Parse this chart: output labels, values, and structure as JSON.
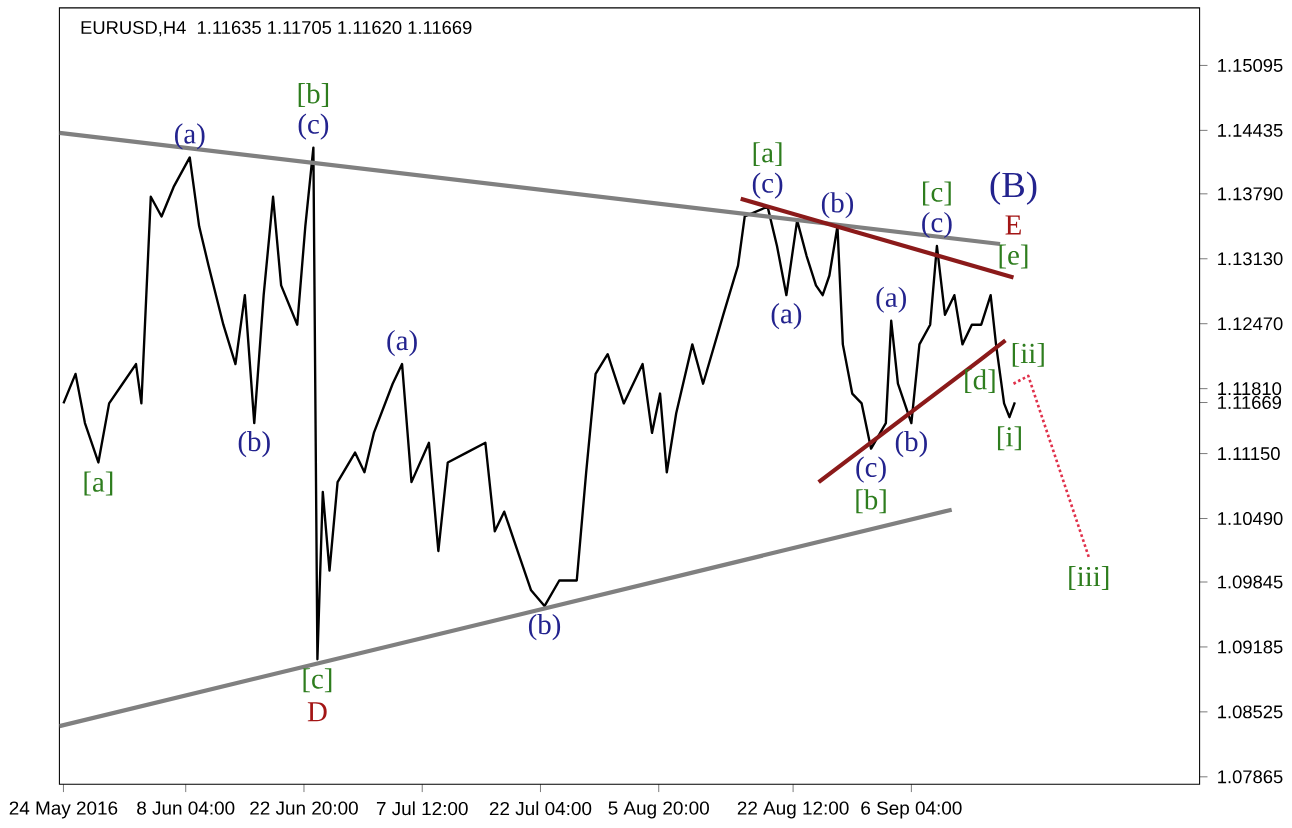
{
  "chart_data": {
    "type": "line",
    "title": "EURUSD,H4",
    "subtitle": "1.11635 1.11705 1.11620 1.11669",
    "xlim": [
      "2016-05-23T12:00",
      "2016-10-11T22:00"
    ],
    "ylim": [
      1.0779,
      1.1568
    ],
    "xticks": [
      {
        "value": "2016-05-24T00:00",
        "label": "24 May 2016"
      },
      {
        "value": "2016-06-08T04:00",
        "label": "8 Jun 04:00"
      },
      {
        "value": "2016-06-22T20:00",
        "label": "22 Jun 20:00"
      },
      {
        "value": "2016-07-07T12:00",
        "label": "7 Jul 12:00"
      },
      {
        "value": "2016-07-22T04:00",
        "label": "22 Jul 04:00"
      },
      {
        "value": "2016-08-05T20:00",
        "label": "5 Aug 20:00"
      },
      {
        "value": "2016-08-22T12:00",
        "label": "22 Aug 12:00"
      },
      {
        "value": "2016-09-06T04:00",
        "label": "6 Sep 04:00"
      }
    ],
    "yticks": [
      1.15095,
      1.14435,
      {
        "value": 1.1379,
        "label": "1.13790"
      },
      {
        "value": 1.1313,
        "label": "1.13130"
      },
      {
        "value": 1.1247,
        "label": "1.12470"
      },
      {
        "value": 1.1181,
        "label": "1.11810"
      },
      1.11669,
      {
        "value": 1.1115,
        "label": "1.11150"
      },
      {
        "value": 1.1049,
        "label": "1.10490"
      },
      1.09845,
      1.09185,
      1.08525,
      1.07865
    ],
    "marker": "none",
    "grid": false,
    "series": [
      {
        "color": "#000000",
        "x": [
          "2016-05-24T00:00",
          "2016-05-25T12:00",
          "2016-05-26T16:00",
          "2016-05-28T08:00",
          "2016-05-29T16:00",
          "2016-05-31T08:00",
          "2016-06-02T00:00",
          "2016-06-02T16:00",
          "2016-06-03T20:00",
          "2016-06-05T04:00",
          "2016-06-06T16:00",
          "2016-06-08T16:00",
          "2016-06-09T20:00",
          "2016-06-11T00:00",
          "2016-06-12T20:00",
          "2016-06-14T08:00",
          "2016-06-15T12:00",
          "2016-06-16T16:00",
          "2016-06-17T20:00",
          "2016-06-19T00:00",
          "2016-06-20T00:00",
          "2016-06-22T00:00",
          "2016-06-23T00:00",
          "2016-06-24T00:00",
          "2016-06-24T12:00",
          "2016-06-25T04:00",
          "2016-06-26T00:00",
          "2016-06-27T00:00",
          "2016-06-29T04:00",
          "2016-06-30T08:00",
          "2016-07-01T12:00",
          "2016-07-03T20:00",
          "2016-07-05T00:00",
          "2016-07-06T04:00",
          "2016-07-08T08:00",
          "2016-07-09T12:00",
          "2016-07-10T16:00",
          "2016-07-13T00:00",
          "2016-07-15T08:00",
          "2016-07-16T12:00",
          "2016-07-17T16:00",
          "2016-07-19T08:00",
          "2016-07-21T00:00",
          "2016-07-22T16:00",
          "2016-07-24T12:00",
          "2016-07-26T16:00",
          "2016-07-27T20:00",
          "2016-07-29T00:00",
          "2016-07-30T12:00",
          "2016-08-01T12:00",
          "2016-08-03T20:00",
          "2016-08-05T00:00",
          "2016-08-06T00:00",
          "2016-08-06T20:00",
          "2016-08-08T00:00",
          "2016-08-10T00:00",
          "2016-08-11T08:00",
          "2016-08-13T20:00",
          "2016-08-15T16:00",
          "2016-08-16T12:00",
          "2016-08-19T08:00",
          "2016-08-20T12:00",
          "2016-08-21T16:00",
          "2016-08-23T00:00",
          "2016-08-24T04:00",
          "2016-08-25T08:00",
          "2016-08-26T04:00",
          "2016-08-27T00:00",
          "2016-08-28T00:00",
          "2016-08-28T16:00",
          "2016-08-29T20:00",
          "2016-08-31T00:00",
          "2016-09-01T04:00",
          "2016-09-03T00:00",
          "2016-09-03T16:00",
          "2016-09-04T12:00",
          "2016-09-06T04:00",
          "2016-09-07T04:00",
          "2016-09-08T12:00",
          "2016-09-09T08:00",
          "2016-09-10T08:00",
          "2016-09-11T12:00",
          "2016-09-12T12:00",
          "2016-09-13T16:00",
          "2016-09-14T20:00",
          "2016-09-16T00:00",
          "2016-09-16T16:00",
          "2016-09-17T16:00",
          "2016-09-18T08:00",
          "2016-09-19T00:00"
        ],
        "values": [
          1.1166,
          1.1196,
          1.1146,
          1.1106,
          1.1166,
          1.1186,
          1.1206,
          1.1166,
          1.1376,
          1.1356,
          1.1386,
          1.1416,
          1.1346,
          1.1306,
          1.1246,
          1.1206,
          1.1276,
          1.1146,
          1.1276,
          1.1376,
          1.1286,
          1.1246,
          1.1346,
          1.1426,
          1.0906,
          1.1076,
          1.0996,
          1.1086,
          1.1116,
          1.1096,
          1.1136,
          1.1186,
          1.1206,
          1.1086,
          1.1126,
          1.1016,
          1.1106,
          1.1116,
          1.1126,
          1.1036,
          1.1056,
          1.1016,
          1.0976,
          1.096,
          1.0986,
          1.0986,
          1.1096,
          1.1196,
          1.1216,
          1.1166,
          1.1206,
          1.1136,
          1.1176,
          1.1096,
          1.1156,
          1.1226,
          1.1186,
          1.1256,
          1.1306,
          1.1356,
          1.1366,
          1.1326,
          1.1276,
          1.1352,
          1.1316,
          1.1286,
          1.1276,
          1.1296,
          1.1346,
          1.1226,
          1.1176,
          1.1166,
          1.112,
          1.1146,
          1.125,
          1.1186,
          1.1146,
          1.1226,
          1.1246,
          1.1326,
          1.1256,
          1.1276,
          1.1226,
          1.1246,
          1.1246,
          1.1276,
          1.1226,
          1.1166,
          1.1152,
          1.1167
        ]
      },
      {
        "color": "#808080",
        "x": [
          "2016-05-23T12:00",
          "2016-09-17T04:00"
        ],
        "values": [
          1.1441,
          1.1328
        ]
      },
      {
        "color": "#808080",
        "x": [
          "2016-05-23T12:00",
          "2016-09-11T04:00"
        ],
        "values": [
          1.0838,
          1.1058
        ]
      },
      {
        "color": "#8b1a1a",
        "x": [
          "2016-08-16T00:00",
          "2016-09-18T20:00"
        ],
        "values": [
          1.1374,
          1.1294
        ]
      },
      {
        "color": "#8b1a1a",
        "x": [
          "2016-08-25T16:00",
          "2016-09-14T16:00",
          "2016-09-17T20:00"
        ],
        "values": [
          1.1086,
          1.121,
          1.123
        ]
      },
      {
        "color": "#e0304a",
        "line_style": "dotted",
        "x": [
          "2016-09-18T20:00",
          "2016-09-20T16:00",
          "2016-09-28T04:00"
        ],
        "values": [
          1.1186,
          1.1194,
          1.101
        ]
      }
    ],
    "annotations": [
      {
        "text": "(c)",
        "x": "2016-06-24T00:00",
        "y": 1.1426
      },
      {
        "text": "[b]",
        "x": "2016-06-24T00:00",
        "y": 1.1426
      },
      {
        "text": "(a)",
        "x": "2016-06-08T16:00",
        "y": 1.1416
      },
      {
        "text": "[a]",
        "x": "2016-05-28T08:00",
        "y": 1.1106
      },
      {
        "text": "(b)",
        "x": "2016-06-16T16:00",
        "y": 1.1146
      },
      {
        "text": "(a)",
        "x": "2016-07-05T00:00",
        "y": 1.1206
      },
      {
        "text": "[c]",
        "x": "2016-06-24T12:00",
        "y": 1.0906
      },
      {
        "text": "D",
        "x": "2016-06-24T12:00",
        "y": 1.0906
      },
      {
        "text": "(b)",
        "x": "2016-07-22T16:00",
        "y": 1.096
      },
      {
        "text": "(c)",
        "x": "2016-08-19T08:00",
        "y": 1.1366
      },
      {
        "text": "[a]",
        "x": "2016-08-19T08:00",
        "y": 1.1366
      },
      {
        "text": "(b)",
        "x": "2016-08-28T00:00",
        "y": 1.1346
      },
      {
        "text": "(a)",
        "x": "2016-08-21T16:00",
        "y": 1.1276
      },
      {
        "text": "(a)",
        "x": "2016-09-03T16:00",
        "y": 1.125
      },
      {
        "text": "(c)",
        "x": "2016-09-09T08:00",
        "y": 1.1326
      },
      {
        "text": "[c]",
        "x": "2016-09-09T08:00",
        "y": 1.1326
      },
      {
        "text": "[e]",
        "x": "2016-09-18T20:00",
        "y": 1.1294
      },
      {
        "text": "E",
        "x": "2016-09-18T20:00",
        "y": 1.1294
      },
      {
        "text": "(B)",
        "x": "2016-09-18T20:00",
        "y": 1.1294
      },
      {
        "text": "[ii]",
        "x": "2016-09-20T16:00",
        "y": 1.1194
      },
      {
        "text": "[d]",
        "x": "2016-09-14T16:00",
        "y": 1.121
      },
      {
        "text": "[i]",
        "x": "2016-09-18T08:00",
        "y": 1.1152
      },
      {
        "text": "(c)",
        "x": "2016-09-01T04:00",
        "y": 1.112
      },
      {
        "text": "[b]",
        "x": "2016-09-01T04:00",
        "y": 1.112
      },
      {
        "text": "(b)",
        "x": "2016-09-06T04:00",
        "y": 1.1146
      },
      {
        "text": "[iii]",
        "x": "2016-09-28T04:00",
        "y": 1.101
      }
    ]
  }
}
